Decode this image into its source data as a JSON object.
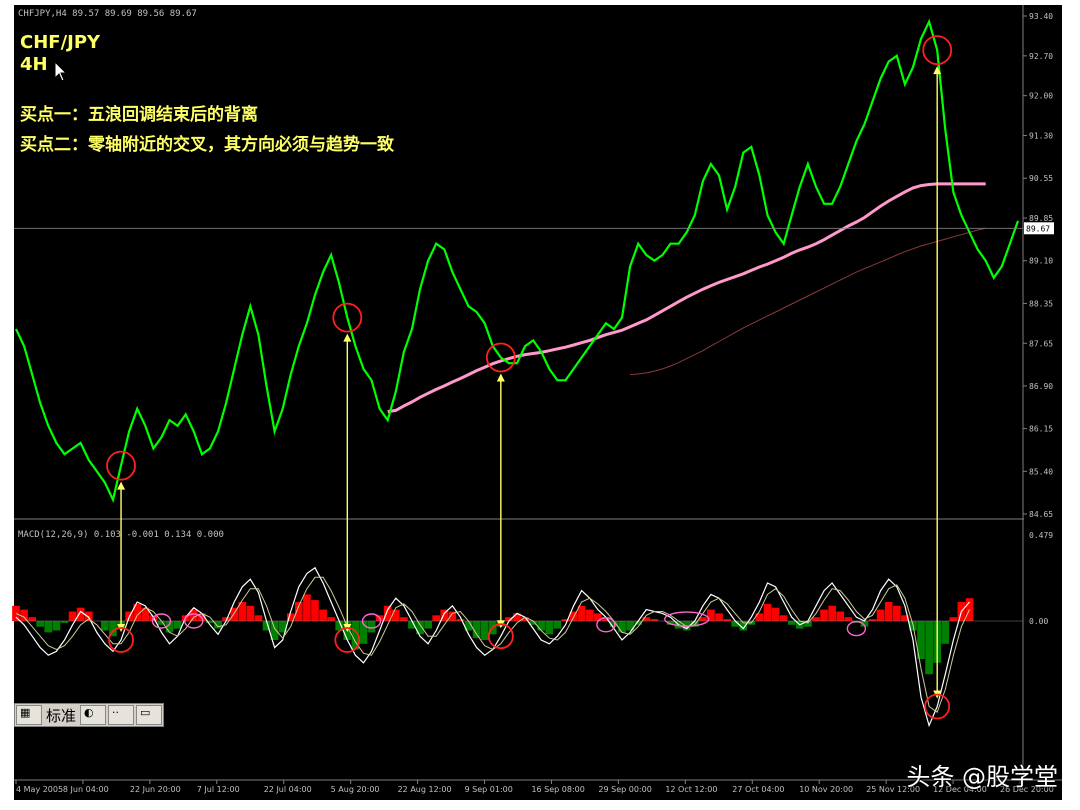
{
  "header": {
    "symbol_line": "CHFJPY,H4  89.57 89.69 89.56 89.67",
    "pair": "CHF/JPY",
    "timeframe": "4H",
    "note1": "买点一：五浪回调结束后的背离",
    "note2": "买点二：零轴附近的交叉，其方向必须与趋势一致"
  },
  "macd_label": "MACD(12,26,9) 0.103 -0.001 0.134 0.000",
  "toolbar": {
    "label": "标准"
  },
  "watermark": "头条 @股学堂",
  "colors": {
    "background": "#000000",
    "price": "#00ff00",
    "ma_fast": "#ff99cc",
    "ma_slow": "#8b3a3a",
    "hist_pos": "#ff0000",
    "hist_neg": "#008000",
    "macd_line": "#ffffff",
    "signal_line": "#cccc99",
    "arrow": "#ffff66",
    "circle": "#ff2020"
  },
  "chart_data": [
    {
      "type": "line",
      "title": "CHF/JPY 4H",
      "y_ticks": [
        "93.40",
        "92.70",
        "92.00",
        "91.30",
        "90.55",
        "89.85",
        "89.10",
        "88.35",
        "87.65",
        "86.90",
        "86.15",
        "85.40",
        "84.65"
      ],
      "current_price": "89.67",
      "x_ticks": [
        "4 May 2005",
        "8 Jun 04:00",
        "22 Jun 20:00",
        "7 Jul 12:00",
        "22 Jul 04:00",
        "5 Aug 20:00",
        "22 Aug 12:00",
        "9 Sep 01:00",
        "16 Sep 08:00",
        "29 Sep 00:00",
        "12 Oct 12:00",
        "27 Oct 04:00",
        "10 Nov 20:00",
        "25 Nov 12:00",
        "12 Dec 04:00",
        "26 Dec 20:00"
      ],
      "ylim": [
        84.65,
        93.4
      ],
      "series": [
        {
          "values": [
            87.9,
            87.6,
            87.1,
            86.6,
            86.2,
            85.9,
            85.7,
            85.8,
            85.9,
            85.6,
            85.4,
            85.2,
            84.9,
            85.5,
            86.1,
            86.5,
            86.2,
            85.8,
            86.0,
            86.3,
            86.2,
            86.4,
            86.1,
            85.7,
            85.8,
            86.1,
            86.6,
            87.2,
            87.8,
            88.3,
            87.8,
            86.9,
            86.1,
            86.5,
            87.1,
            87.6,
            88.0,
            88.5,
            88.9,
            89.2,
            88.7,
            88.1,
            87.6,
            87.2,
            87.0,
            86.5,
            86.3,
            86.8,
            87.5,
            87.9,
            88.6,
            89.1,
            89.4,
            89.3,
            88.9,
            88.6,
            88.3,
            88.2,
            88.0,
            87.6,
            87.4,
            87.3,
            87.3,
            87.6,
            87.7,
            87.5,
            87.2,
            87.0,
            87.0,
            87.2,
            87.4,
            87.6,
            87.8,
            88.0,
            87.9,
            88.1,
            89.0,
            89.4,
            89.2,
            89.1,
            89.2,
            89.4,
            89.4,
            89.6,
            89.9,
            90.5,
            90.8,
            90.6,
            90.0,
            90.4,
            91.0,
            91.1,
            90.6,
            89.9,
            89.6,
            89.4,
            89.9,
            90.4,
            90.8,
            90.4,
            90.1,
            90.1,
            90.4,
            90.8,
            91.2,
            91.5,
            91.9,
            92.3,
            92.6,
            92.7,
            92.2,
            92.5,
            93.0,
            93.3,
            92.8,
            91.4,
            90.3,
            89.9,
            89.6,
            89.3,
            89.1,
            88.8,
            89.0,
            89.4,
            89.8
          ]
        },
        {
          "values": [
            null,
            null,
            null,
            null,
            null,
            null,
            null,
            null,
            null,
            null,
            null,
            null,
            null,
            null,
            null,
            null,
            null,
            null,
            null,
            null,
            null,
            null,
            null,
            null,
            null,
            null,
            null,
            null,
            null,
            null,
            null,
            null,
            null,
            null,
            null,
            null,
            null,
            null,
            null,
            null,
            null,
            null,
            null,
            null,
            null,
            null,
            86.45,
            86.47,
            86.55,
            86.62,
            86.7,
            86.77,
            86.84,
            86.9,
            86.97,
            87.03,
            87.1,
            87.17,
            87.23,
            87.29,
            87.34,
            87.38,
            87.42,
            87.45,
            87.47,
            87.49,
            87.52,
            87.55,
            87.58,
            87.62,
            87.66,
            87.7,
            87.75,
            87.8,
            87.84,
            87.88,
            87.94,
            88.0,
            88.06,
            88.14,
            88.22,
            88.3,
            88.38,
            88.46,
            88.53,
            88.6,
            88.66,
            88.72,
            88.77,
            88.82,
            88.87,
            88.93,
            88.99,
            89.04,
            89.1,
            89.16,
            89.23,
            89.29,
            89.34,
            89.4,
            89.47,
            89.55,
            89.63,
            89.71,
            89.78,
            89.86,
            89.96,
            90.06,
            90.15,
            90.23,
            90.31,
            90.38,
            90.42,
            90.44,
            90.45,
            90.45,
            90.45,
            90.45,
            90.45,
            90.45,
            90.45
          ]
        },
        {
          "values": [
            null,
            null,
            null,
            null,
            null,
            null,
            null,
            null,
            null,
            null,
            null,
            null,
            null,
            null,
            null,
            null,
            null,
            null,
            null,
            null,
            null,
            null,
            null,
            null,
            null,
            null,
            null,
            null,
            null,
            null,
            null,
            null,
            null,
            null,
            null,
            null,
            null,
            null,
            null,
            null,
            null,
            null,
            null,
            null,
            null,
            null,
            null,
            null,
            null,
            null,
            null,
            null,
            null,
            null,
            null,
            null,
            null,
            null,
            null,
            null,
            null,
            null,
            null,
            null,
            null,
            null,
            null,
            null,
            null,
            null,
            null,
            null,
            null,
            null,
            null,
            null,
            87.1,
            87.11,
            87.13,
            87.16,
            87.2,
            87.25,
            87.31,
            87.38,
            87.45,
            87.52,
            87.6,
            87.68,
            87.76,
            87.84,
            87.92,
            87.99,
            88.06,
            88.13,
            88.2,
            88.27,
            88.34,
            88.41,
            88.48,
            88.55,
            88.62,
            88.69,
            88.76,
            88.83,
            88.9,
            88.96,
            89.02,
            89.08,
            89.14,
            89.2,
            89.26,
            89.31,
            89.36,
            89.4,
            89.44,
            89.48,
            89.52,
            89.56,
            89.6,
            89.64,
            89.67
          ]
        }
      ]
    },
    {
      "type": "bar",
      "title": "MACD(12,26,9)",
      "y_ticks": [
        "0.479",
        "0.00"
      ],
      "ylim": [
        -0.6,
        0.479
      ],
      "series": [
        {
          "name": "histogram",
          "values": [
            0.08,
            0.06,
            0.02,
            -0.03,
            -0.06,
            -0.05,
            -0.01,
            0.05,
            0.07,
            0.05,
            0.0,
            -0.05,
            -0.08,
            -0.04,
            0.05,
            0.09,
            0.07,
            0.03,
            -0.02,
            -0.06,
            -0.04,
            0.03,
            0.06,
            0.04,
            -0.01,
            -0.04,
            0.02,
            0.07,
            0.1,
            0.08,
            0.03,
            -0.05,
            -0.1,
            -0.06,
            0.04,
            0.1,
            0.14,
            0.11,
            0.06,
            0.02,
            -0.05,
            -0.1,
            -0.15,
            -0.12,
            -0.06,
            0.03,
            0.08,
            0.06,
            0.02,
            -0.04,
            -0.07,
            -0.04,
            0.03,
            0.06,
            0.05,
            0.01,
            -0.05,
            -0.09,
            -0.1,
            -0.07,
            -0.03,
            0.02,
            0.04,
            0.02,
            -0.02,
            -0.05,
            -0.07,
            -0.04,
            0.01,
            0.05,
            0.08,
            0.06,
            0.04,
            0.02,
            -0.03,
            -0.06,
            -0.05,
            -0.02,
            0.02,
            0.01,
            0.0,
            -0.02,
            -0.04,
            -0.05,
            -0.03,
            0.02,
            0.06,
            0.04,
            0.01,
            -0.03,
            -0.05,
            -0.02,
            0.04,
            0.09,
            0.07,
            0.03,
            -0.02,
            -0.04,
            -0.03,
            0.02,
            0.06,
            0.08,
            0.05,
            0.02,
            -0.01,
            -0.03,
            0.01,
            0.06,
            0.1,
            0.08,
            0.03,
            -0.05,
            -0.2,
            -0.28,
            -0.22,
            -0.12,
            0.02,
            0.1,
            0.12
          ]
        },
        {
          "name": "macd",
          "values": [
            0.02,
            -0.02,
            -0.08,
            -0.14,
            -0.18,
            -0.16,
            -0.1,
            -0.02,
            0.05,
            0.02,
            -0.06,
            -0.12,
            -0.16,
            -0.1,
            0.02,
            0.1,
            0.08,
            0.02,
            -0.06,
            -0.12,
            -0.08,
            0.02,
            0.07,
            0.04,
            -0.02,
            -0.07,
            0.0,
            0.1,
            0.18,
            0.22,
            0.15,
            0.0,
            -0.14,
            -0.1,
            0.05,
            0.18,
            0.25,
            0.28,
            0.2,
            0.1,
            0.0,
            -0.1,
            -0.18,
            -0.22,
            -0.16,
            -0.05,
            0.06,
            0.12,
            0.08,
            0.0,
            -0.08,
            -0.12,
            -0.05,
            0.04,
            0.08,
            0.02,
            -0.07,
            -0.14,
            -0.18,
            -0.15,
            -0.08,
            0.0,
            0.04,
            0.02,
            -0.04,
            -0.1,
            -0.12,
            -0.08,
            -0.02,
            0.08,
            0.16,
            0.12,
            0.06,
            0.02,
            -0.04,
            -0.1,
            -0.06,
            0.0,
            0.06,
            0.05,
            0.04,
            0.02,
            -0.02,
            -0.04,
            0.0,
            0.08,
            0.14,
            0.12,
            0.06,
            0.0,
            -0.04,
            0.02,
            0.1,
            0.2,
            0.18,
            0.1,
            0.02,
            -0.02,
            0.0,
            0.08,
            0.16,
            0.2,
            0.14,
            0.08,
            0.02,
            0.0,
            0.06,
            0.16,
            0.22,
            0.18,
            0.08,
            -0.1,
            -0.4,
            -0.55,
            -0.45,
            -0.28,
            -0.1,
            0.05,
            0.1
          ]
        },
        {
          "name": "signal",
          "values": [
            0.04,
            0.02,
            -0.03,
            -0.08,
            -0.13,
            -0.15,
            -0.13,
            -0.08,
            -0.02,
            0.01,
            -0.02,
            -0.07,
            -0.12,
            -0.12,
            -0.06,
            0.03,
            0.07,
            0.05,
            0.0,
            -0.06,
            -0.08,
            -0.04,
            0.02,
            0.04,
            0.02,
            -0.03,
            -0.02,
            0.04,
            0.11,
            0.17,
            0.17,
            0.08,
            -0.04,
            -0.09,
            -0.03,
            0.08,
            0.17,
            0.23,
            0.23,
            0.16,
            0.07,
            -0.03,
            -0.11,
            -0.17,
            -0.18,
            -0.11,
            -0.02,
            0.07,
            0.09,
            0.05,
            -0.02,
            -0.08,
            -0.08,
            -0.02,
            0.04,
            0.05,
            0.0,
            -0.07,
            -0.13,
            -0.15,
            -0.12,
            -0.06,
            -0.01,
            0.02,
            0.0,
            -0.05,
            -0.09,
            -0.1,
            -0.06,
            0.02,
            0.1,
            0.12,
            0.09,
            0.05,
            0.0,
            -0.06,
            -0.07,
            -0.03,
            0.03,
            0.05,
            0.05,
            0.03,
            0.0,
            -0.03,
            -0.02,
            0.04,
            0.1,
            0.12,
            0.09,
            0.04,
            -0.01,
            -0.01,
            0.05,
            0.14,
            0.17,
            0.13,
            0.06,
            0.0,
            -0.01,
            0.04,
            0.11,
            0.17,
            0.16,
            0.11,
            0.05,
            0.01,
            0.03,
            0.1,
            0.17,
            0.19,
            0.12,
            -0.02,
            -0.25,
            -0.45,
            -0.48,
            -0.36,
            -0.18,
            -0.03,
            0.06
          ]
        }
      ]
    }
  ],
  "annotations": {
    "arrows": [
      {
        "index": 13
      },
      {
        "index": 41
      },
      {
        "index": 60
      },
      {
        "index": 114
      }
    ]
  }
}
